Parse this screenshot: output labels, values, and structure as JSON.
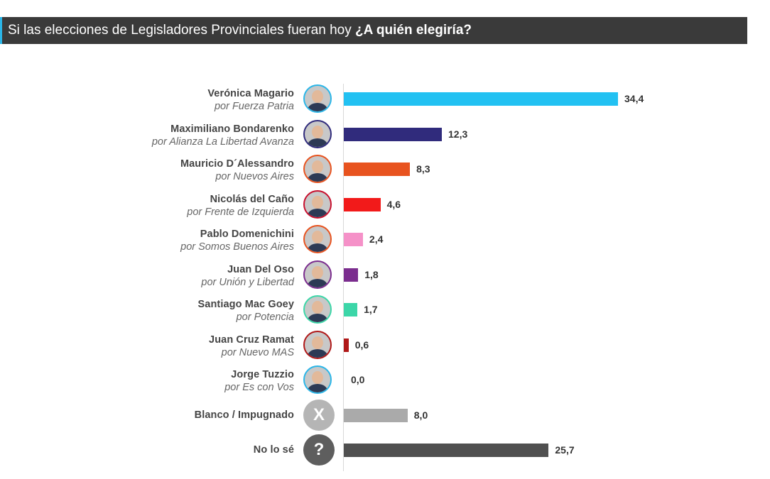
{
  "header": {
    "title_plain": "Si las elecciones de Legisladores Provinciales fueran hoy ",
    "title_bold": "¿A quién elegiría?"
  },
  "chart_data": {
    "type": "bar",
    "orientation": "horizontal",
    "title": "Si las elecciones de Legisladores Provinciales fueran hoy ¿A quién elegiría?",
    "xlim": [
      0,
      36
    ],
    "grid": false,
    "legend": "none",
    "rows": [
      {
        "name": "Verónica Magario",
        "party": "por Fuerza Patria",
        "value": 34.4,
        "label": "34,4",
        "color": "#22c1f2",
        "avatar": "photo",
        "ring": "#2bb6e8"
      },
      {
        "name": "Maximiliano Bondarenko",
        "party": "por Alianza La Libertad Avanza",
        "value": 12.3,
        "label": "12,3",
        "color": "#302b7c",
        "avatar": "photo",
        "ring": "#302b7c"
      },
      {
        "name": "Mauricio D´Alessandro",
        "party": "por Nuevos Aires",
        "value": 8.3,
        "label": "8,3",
        "color": "#e8531f",
        "avatar": "photo",
        "ring": "#e8531f"
      },
      {
        "name": "Nicolás del Caño",
        "party": "por Frente de Izquierda",
        "value": 4.6,
        "label": "4,6",
        "color": "#f21a1a",
        "avatar": "photo",
        "ring": "#c8102e"
      },
      {
        "name": "Pablo Domenichini",
        "party": "por Somos Buenos Aires",
        "value": 2.4,
        "label": "2,4",
        "color": "#f591c8",
        "avatar": "photo",
        "ring": "#e8531f"
      },
      {
        "name": "Juan Del Oso",
        "party": "por Unión y Libertad",
        "value": 1.8,
        "label": "1,8",
        "color": "#7b2d8e",
        "avatar": "photo",
        "ring": "#7b2d8e"
      },
      {
        "name": "Santiago Mac Goey",
        "party": "por Potencia",
        "value": 1.7,
        "label": "1,7",
        "color": "#3cd6a8",
        "avatar": "photo",
        "ring": "#3cd6a8"
      },
      {
        "name": "Juan Cruz Ramat",
        "party": "por Nuevo MAS",
        "value": 0.6,
        "label": "0,6",
        "color": "#b01818",
        "avatar": "photo",
        "ring": "#b01818"
      },
      {
        "name": "Jorge Tuzzio",
        "party": "por Es con Vos",
        "value": 0.0,
        "label": "0,0",
        "color": "#2bb6e8",
        "avatar": "photo",
        "ring": "#2bb6e8"
      },
      {
        "name": "Blanco / Impugnado",
        "party": "",
        "value": 8.0,
        "label": "8,0",
        "color": "#aaaaaa",
        "avatar": "x",
        "symbol": "X"
      },
      {
        "name": "No lo sé",
        "party": "",
        "value": 25.7,
        "label": "25,7",
        "color": "#505050",
        "avatar": "question",
        "symbol": "?"
      }
    ]
  }
}
